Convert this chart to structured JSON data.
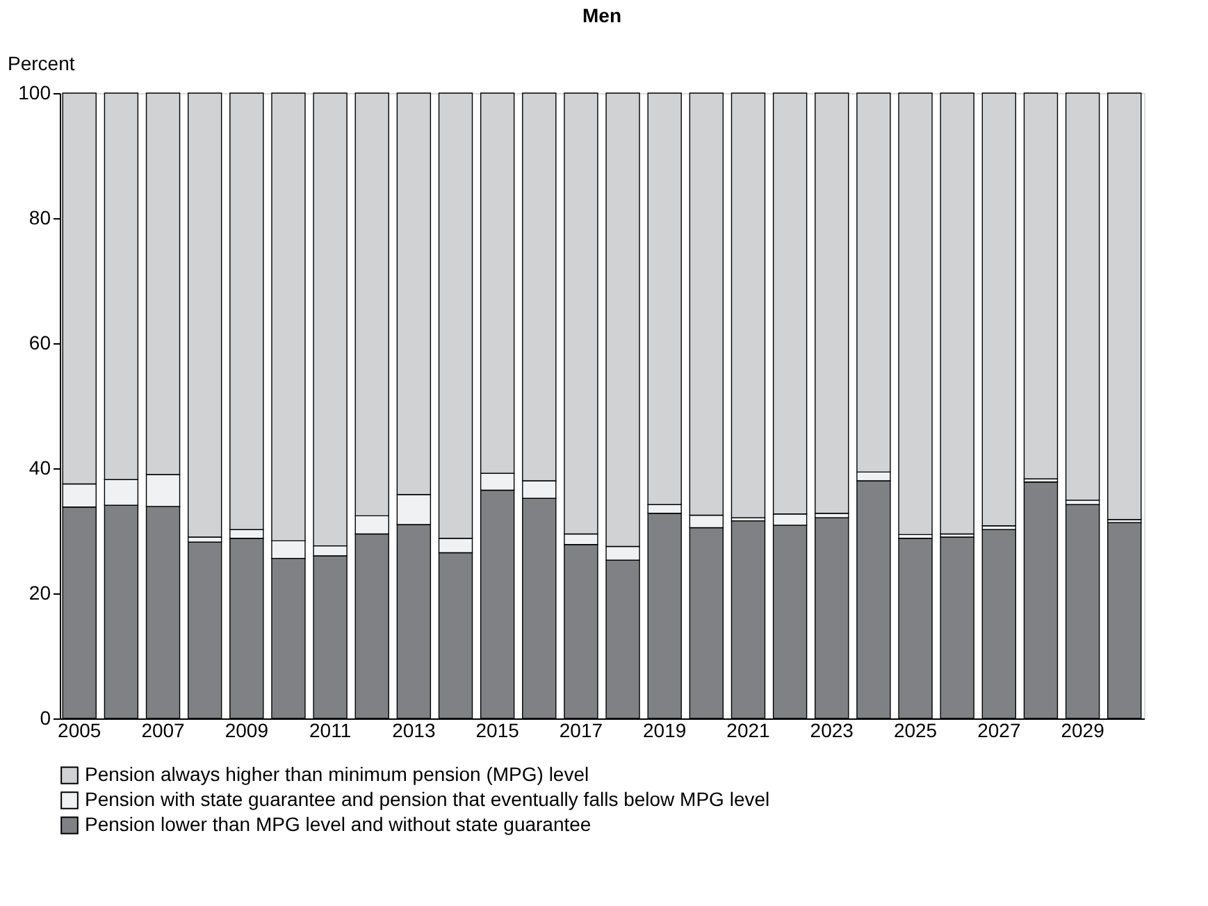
{
  "chart_data": {
    "type": "bar",
    "stacked": true,
    "title": "Men",
    "ylabel": "Percent",
    "categories": [
      "2005",
      null,
      "2007",
      null,
      "2009",
      null,
      "2011",
      null,
      "2013",
      null,
      "2015",
      null,
      "2017",
      null,
      "2019",
      null,
      "2021",
      null,
      "2023",
      null,
      "2025",
      null,
      "2027",
      null,
      "2029",
      null
    ],
    "series": [
      {
        "name": "Pension lower than MPG level and without state guarantee",
        "color": "#808184",
        "values": [
          33.8,
          34.1,
          33.9,
          28.2,
          28.8,
          25.6,
          26.0,
          29.5,
          31.0,
          26.5,
          36.5,
          35.2,
          27.8,
          25.3,
          32.8,
          30.5,
          31.6,
          30.9,
          32.1,
          38.0,
          28.8,
          29.0,
          30.2,
          37.8,
          34.2,
          31.3
        ]
      },
      {
        "name": "Pension with state guarantee and pension that eventually falls below MPG level",
        "color": "#f0f1f2",
        "values": [
          3.7,
          4.1,
          5.1,
          0.8,
          1.4,
          2.8,
          1.6,
          2.9,
          4.8,
          2.3,
          2.7,
          2.8,
          1.7,
          2.2,
          1.4,
          2.0,
          0.5,
          1.8,
          0.7,
          1.4,
          0.6,
          0.5,
          0.6,
          0.5,
          0.7,
          0.5
        ]
      },
      {
        "name": "Pension always higher than minimum pension (MPG) level",
        "color": "#d1d2d4",
        "values": [
          62.5,
          61.8,
          61.0,
          71.0,
          69.8,
          71.6,
          72.4,
          67.6,
          64.2,
          71.2,
          60.8,
          62.0,
          70.5,
          72.5,
          65.8,
          67.5,
          67.9,
          67.3,
          67.2,
          60.6,
          70.6,
          70.5,
          69.2,
          61.7,
          65.1,
          68.2
        ]
      }
    ],
    "ylim": [
      0,
      100
    ],
    "yticks": [
      0,
      20,
      40,
      60,
      80,
      100
    ],
    "grid": false,
    "legend": "bottom"
  }
}
